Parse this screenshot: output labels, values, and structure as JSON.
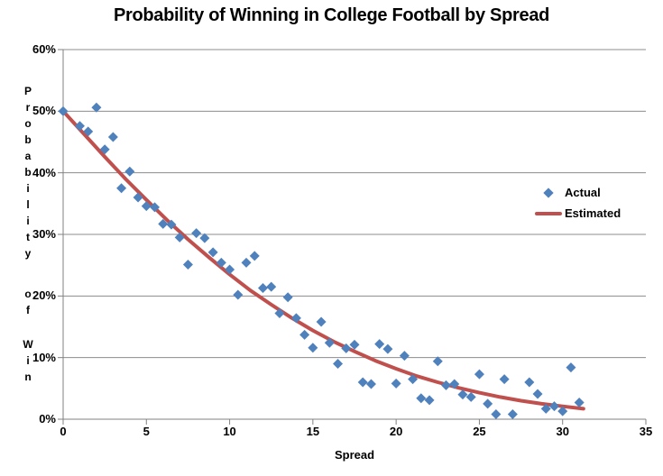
{
  "title": "Probability of Winning in College Football by Spread",
  "axes": {
    "x_label": "Spread",
    "y_label": "Probability of Win",
    "x_ticks": [
      "0",
      "5",
      "10",
      "15",
      "20",
      "25",
      "30",
      "35"
    ],
    "y_ticks": [
      "0%",
      "10%",
      "20%",
      "30%",
      "40%",
      "50%",
      "60%"
    ]
  },
  "legend": {
    "items": [
      {
        "label": "Actual",
        "marker": "blue-diamond"
      },
      {
        "label": "Estimated",
        "marker": "red-line"
      }
    ]
  },
  "colors": {
    "actual_blue": "#4F81BD",
    "estimated_red": "#C0504D",
    "gridline_gray": "#8C8C8C",
    "axis_gray": "#808080",
    "text": "#000000",
    "background": "#FFFFFF"
  },
  "chart_data": {
    "type": "scatter",
    "title": "Probability of Winning in College Football by Spread",
    "xlabel": "Spread",
    "ylabel": "Probability of Win",
    "xlim": [
      0,
      35
    ],
    "ylim_percent": [
      0,
      60
    ],
    "y_tick_step_percent": 10,
    "x_tick_step": 5,
    "grid": true,
    "legend_position": "right-inside",
    "units": "y values are win probability in percent",
    "series": [
      {
        "name": "Actual",
        "type": "scatter",
        "marker": "diamond",
        "color": "#4F81BD",
        "points": [
          [
            0,
            50
          ],
          [
            1,
            47.6
          ],
          [
            1.5,
            46.7
          ],
          [
            2,
            50.6
          ],
          [
            2.5,
            43.8
          ],
          [
            3,
            45.8
          ],
          [
            3.5,
            37.5
          ],
          [
            4,
            40.2
          ],
          [
            4.5,
            36
          ],
          [
            5,
            34.6
          ],
          [
            5.5,
            34.4
          ],
          [
            6,
            31.7
          ],
          [
            6.5,
            31.6
          ],
          [
            7,
            29.5
          ],
          [
            7.5,
            25.1
          ],
          [
            8,
            30.2
          ],
          [
            8.5,
            29.4
          ],
          [
            9,
            27.1
          ],
          [
            9.5,
            25.4
          ],
          [
            10,
            24.3
          ],
          [
            10.5,
            20.2
          ],
          [
            11,
            25.4
          ],
          [
            11.5,
            26.5
          ],
          [
            12,
            21.3
          ],
          [
            12.5,
            21.5
          ],
          [
            13,
            17.2
          ],
          [
            13.5,
            19.8
          ],
          [
            14,
            16.4
          ],
          [
            14.5,
            13.7
          ],
          [
            15,
            11.6
          ],
          [
            15.5,
            15.8
          ],
          [
            16,
            12.4
          ],
          [
            16.5,
            9
          ],
          [
            17,
            11.5
          ],
          [
            17.5,
            12.1
          ],
          [
            18,
            6
          ],
          [
            18.5,
            5.7
          ],
          [
            19,
            12.2
          ],
          [
            19.5,
            11.4
          ],
          [
            20,
            5.8
          ],
          [
            20.5,
            10.3
          ],
          [
            21,
            6.5
          ],
          [
            21.5,
            3.4
          ],
          [
            22,
            3.1
          ],
          [
            22.5,
            9.4
          ],
          [
            23,
            5.5
          ],
          [
            23.5,
            5.7
          ],
          [
            24,
            4
          ],
          [
            24.5,
            3.6
          ],
          [
            25,
            7.3
          ],
          [
            25.5,
            2.5
          ],
          [
            26,
            0.8
          ],
          [
            26.5,
            6.5
          ],
          [
            27,
            0.8
          ],
          [
            28,
            6
          ],
          [
            28.5,
            4.1
          ],
          [
            29,
            1.7
          ],
          [
            29.5,
            2.1
          ],
          [
            30,
            1.3
          ],
          [
            30.5,
            8.4
          ],
          [
            31,
            2.7
          ]
        ]
      },
      {
        "name": "Estimated",
        "type": "line",
        "color": "#C0504D",
        "stroke_width": 4,
        "points": [
          [
            0,
            50
          ],
          [
            1.25,
            46.3
          ],
          [
            2.5,
            42.6
          ],
          [
            3.75,
            39
          ],
          [
            5,
            35.6
          ],
          [
            6.25,
            32.3
          ],
          [
            7.5,
            29.2
          ],
          [
            8.75,
            26.3
          ],
          [
            10,
            23.5
          ],
          [
            11.25,
            20.9
          ],
          [
            12.5,
            18.6
          ],
          [
            13.75,
            16.4
          ],
          [
            15,
            14.4
          ],
          [
            16.25,
            12.6
          ],
          [
            17.5,
            11
          ],
          [
            18.75,
            9.5
          ],
          [
            20,
            8.2
          ],
          [
            21.25,
            7
          ],
          [
            22.5,
            6
          ],
          [
            23.75,
            5.1
          ],
          [
            25,
            4.3
          ],
          [
            26.25,
            3.6
          ],
          [
            27.5,
            3
          ],
          [
            28.75,
            2.5
          ],
          [
            30,
            2.1
          ],
          [
            31.25,
            1.7
          ]
        ]
      }
    ]
  }
}
